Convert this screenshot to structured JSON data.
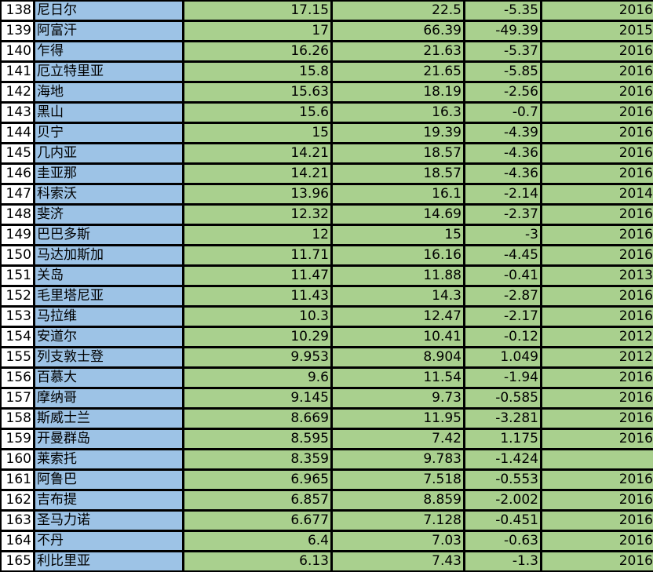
{
  "colors": {
    "name_fill": "#9DC3E6",
    "value_fill": "#A9D08E",
    "row_header_fill": "#FFFFFF",
    "grid_lines": "#000000"
  },
  "rows": [
    [
      "138",
      "尼日尔",
      "17.15",
      "22.5",
      "-5.35",
      "2016"
    ],
    [
      "139",
      "阿富汗",
      "17",
      "66.39",
      "-49.39",
      "2015"
    ],
    [
      "140",
      "乍得",
      "16.26",
      "21.63",
      "-5.37",
      "2016"
    ],
    [
      "141",
      "厄立特里亚",
      "15.8",
      "21.65",
      "-5.85",
      "2016"
    ],
    [
      "142",
      "海地",
      "15.63",
      "18.19",
      "-2.56",
      "2016"
    ],
    [
      "143",
      "黑山",
      "15.6",
      "16.3",
      "-0.7",
      "2016"
    ],
    [
      "144",
      "贝宁",
      "15",
      "19.39",
      "-4.39",
      "2016"
    ],
    [
      "145",
      "几内亚",
      "14.21",
      "18.57",
      "-4.36",
      "2016"
    ],
    [
      "146",
      "圭亚那",
      "14.21",
      "18.57",
      "-4.36",
      "2016"
    ],
    [
      "147",
      "科索沃",
      "13.96",
      "16.1",
      "-2.14",
      "2014"
    ],
    [
      "148",
      "斐济",
      "12.32",
      "14.69",
      "-2.37",
      "2016"
    ],
    [
      "149",
      "巴巴多斯",
      "12",
      "15",
      "-3",
      "2016"
    ],
    [
      "150",
      "马达加斯加",
      "11.71",
      "16.16",
      "-4.45",
      "2016"
    ],
    [
      "151",
      "关岛",
      "11.47",
      "11.88",
      "-0.41",
      "2013"
    ],
    [
      "152",
      "毛里塔尼亚",
      "11.43",
      "14.3",
      "-2.87",
      "2016"
    ],
    [
      "153",
      "马拉维",
      "10.3",
      "12.47",
      "-2.17",
      "2016"
    ],
    [
      "154",
      "安道尔",
      "10.29",
      "10.41",
      "-0.12",
      "2012"
    ],
    [
      "155",
      "列支敦士登",
      "9.953",
      "8.904",
      "1.049",
      "2012"
    ],
    [
      "156",
      "百慕大",
      "9.6",
      "11.54",
      "-1.94",
      "2016"
    ],
    [
      "157",
      "摩纳哥",
      "9.145",
      "9.73",
      "-0.585",
      "2016"
    ],
    [
      "158",
      "斯威士兰",
      "8.669",
      "11.95",
      "-3.281",
      "2016"
    ],
    [
      "159",
      "开曼群岛",
      "8.595",
      "7.42",
      "1.175",
      "2016"
    ],
    [
      "160",
      "莱索托",
      "8.359",
      "9.783",
      "-1.424",
      ""
    ],
    [
      "161",
      "阿鲁巴",
      "6.965",
      "7.518",
      "-0.553",
      "2016"
    ],
    [
      "162",
      "吉布提",
      "6.857",
      "8.859",
      "-2.002",
      "2016"
    ],
    [
      "163",
      "圣马力诺",
      "6.677",
      "7.128",
      "-0.451",
      "2016"
    ],
    [
      "164",
      "不丹",
      "6.4",
      "7.03",
      "-0.63",
      "2016"
    ],
    [
      "165",
      "利比里亚",
      "6.13",
      "7.43",
      "-1.3",
      "2016"
    ]
  ]
}
